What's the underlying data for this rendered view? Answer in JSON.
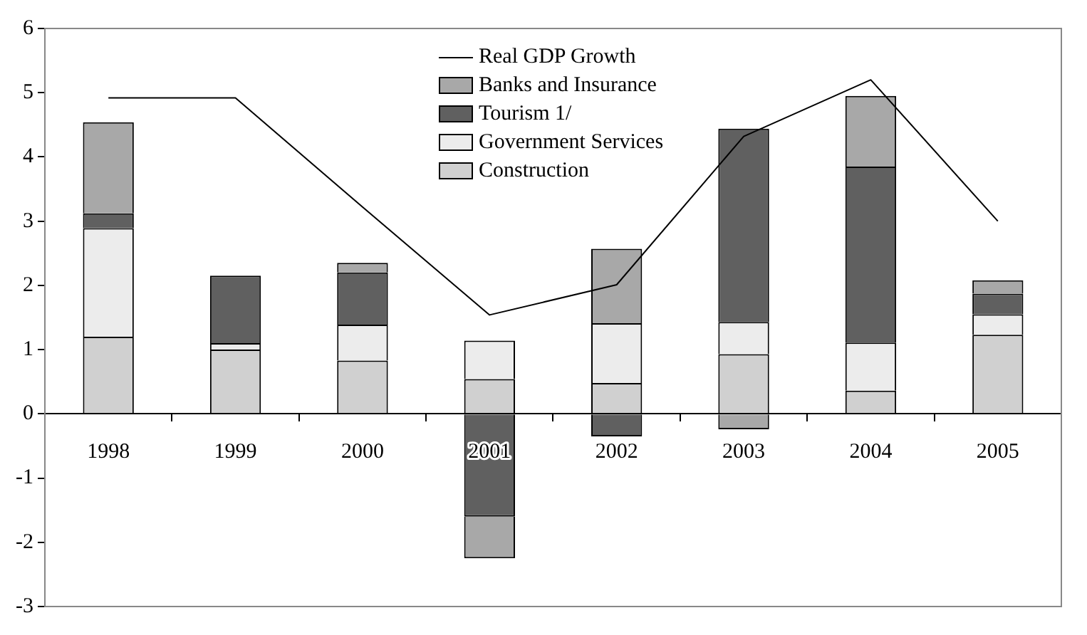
{
  "chart_data": {
    "type": "bar",
    "stacked": true,
    "categories": [
      "1998",
      "1999",
      "2000",
      "2001",
      "2002",
      "2003",
      "2004",
      "2005"
    ],
    "series": [
      {
        "name": "Construction",
        "color": "#d0d0d0",
        "values": [
          1.2,
          1.0,
          0.83,
          0.54,
          0.48,
          0.93,
          0.36,
          1.23
        ]
      },
      {
        "name": "Government Services",
        "color": "#ececec",
        "values": [
          1.69,
          0.1,
          0.56,
          0.6,
          0.93,
          0.5,
          0.75,
          0.32
        ]
      },
      {
        "name": "Tourism 1/",
        "color": "#606060",
        "values": [
          0.23,
          1.05,
          0.81,
          -1.6,
          -0.35,
          3.01,
          2.74,
          0.32
        ]
      },
      {
        "name": "Banks and Insurance",
        "color": "#a8a8a8",
        "values": [
          1.42,
          0.0,
          0.15,
          -0.65,
          1.16,
          -0.24,
          1.1,
          0.21
        ]
      },
      {
        "name": "Real GDP Growth",
        "type": "line",
        "color": "#000000",
        "values": [
          4.92,
          4.92,
          3.22,
          1.54,
          2.01,
          4.32,
          5.2,
          3.0
        ]
      }
    ],
    "ylim": [
      -3,
      6
    ],
    "yticks": [
      -3,
      -2,
      -1,
      0,
      1,
      2,
      3,
      4,
      5,
      6
    ],
    "grid": false,
    "legend": "top",
    "marker": "none"
  }
}
